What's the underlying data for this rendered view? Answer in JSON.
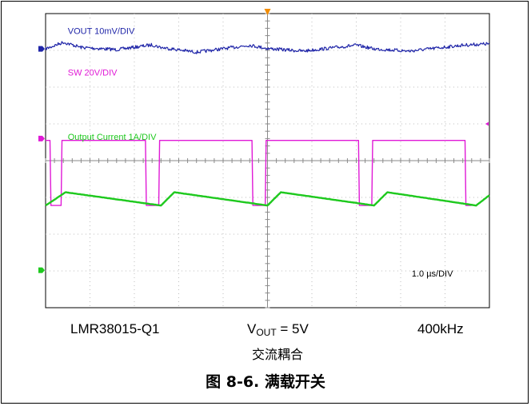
{
  "chart_data": {
    "type": "line",
    "subtitle": "",
    "xlabel": "",
    "ylabel": "",
    "time_scale": "1.0 µs/DIV",
    "grid": true,
    "divisions": {
      "x": 10,
      "y": 8
    },
    "series": [
      {
        "name": "VOUT 10mV/DIV",
        "color": "#1f25a8",
        "ground_marker_div": 0.96,
        "description_period_us": 2.5,
        "points": [
          [
            0.0,
            0.96
          ],
          [
            0.4,
            0.78
          ],
          [
            0.8,
            0.92
          ],
          [
            1.6,
            0.98
          ],
          [
            2.4,
            0.85
          ],
          [
            2.6,
            0.92
          ],
          [
            3.4,
            1.05
          ],
          [
            4.6,
            0.86
          ],
          [
            5.0,
            0.95
          ],
          [
            5.8,
            1.02
          ],
          [
            7.0,
            0.86
          ],
          [
            7.4,
            0.96
          ],
          [
            8.2,
            1.02
          ],
          [
            9.4,
            0.86
          ],
          [
            10.0,
            0.82
          ]
        ]
      },
      {
        "name": "SW 20V/DIV",
        "color": "#e01ad6",
        "ground_marker_div": 3.4,
        "points": [
          [
            0.0,
            3.45
          ],
          [
            0.1,
            3.45
          ],
          [
            0.12,
            5.22
          ],
          [
            0.35,
            5.22
          ],
          [
            0.37,
            3.45
          ],
          [
            2.25,
            3.45
          ],
          [
            2.27,
            5.22
          ],
          [
            2.55,
            5.22
          ],
          [
            2.57,
            3.45
          ],
          [
            4.65,
            3.45
          ],
          [
            4.67,
            5.22
          ],
          [
            4.95,
            5.22
          ],
          [
            4.97,
            3.45
          ],
          [
            7.05,
            3.45
          ],
          [
            7.07,
            5.22
          ],
          [
            7.35,
            5.22
          ],
          [
            7.37,
            3.45
          ],
          [
            9.45,
            3.45
          ],
          [
            9.47,
            5.22
          ],
          [
            9.6,
            5.22
          ]
        ]
      },
      {
        "name": "Output Current 1A/DIV",
        "color": "#1ec91e",
        "ground_marker_div": 6.98,
        "points": [
          [
            0.0,
            5.22
          ],
          [
            0.45,
            4.86
          ],
          [
            2.6,
            5.22
          ],
          [
            2.9,
            4.86
          ],
          [
            5.0,
            5.22
          ],
          [
            5.3,
            4.86
          ],
          [
            7.4,
            5.22
          ],
          [
            7.7,
            4.86
          ],
          [
            9.7,
            5.22
          ],
          [
            10.0,
            4.94
          ]
        ]
      }
    ]
  },
  "captions": {
    "device": "LMR38015-Q1",
    "vout_label": "V",
    "vout_sub": "OUT",
    "vout_value": " = 5V",
    "frequency": "400kHz",
    "coupling": "交流耦合"
  },
  "figure_title": "图 8-6. 满载开关"
}
